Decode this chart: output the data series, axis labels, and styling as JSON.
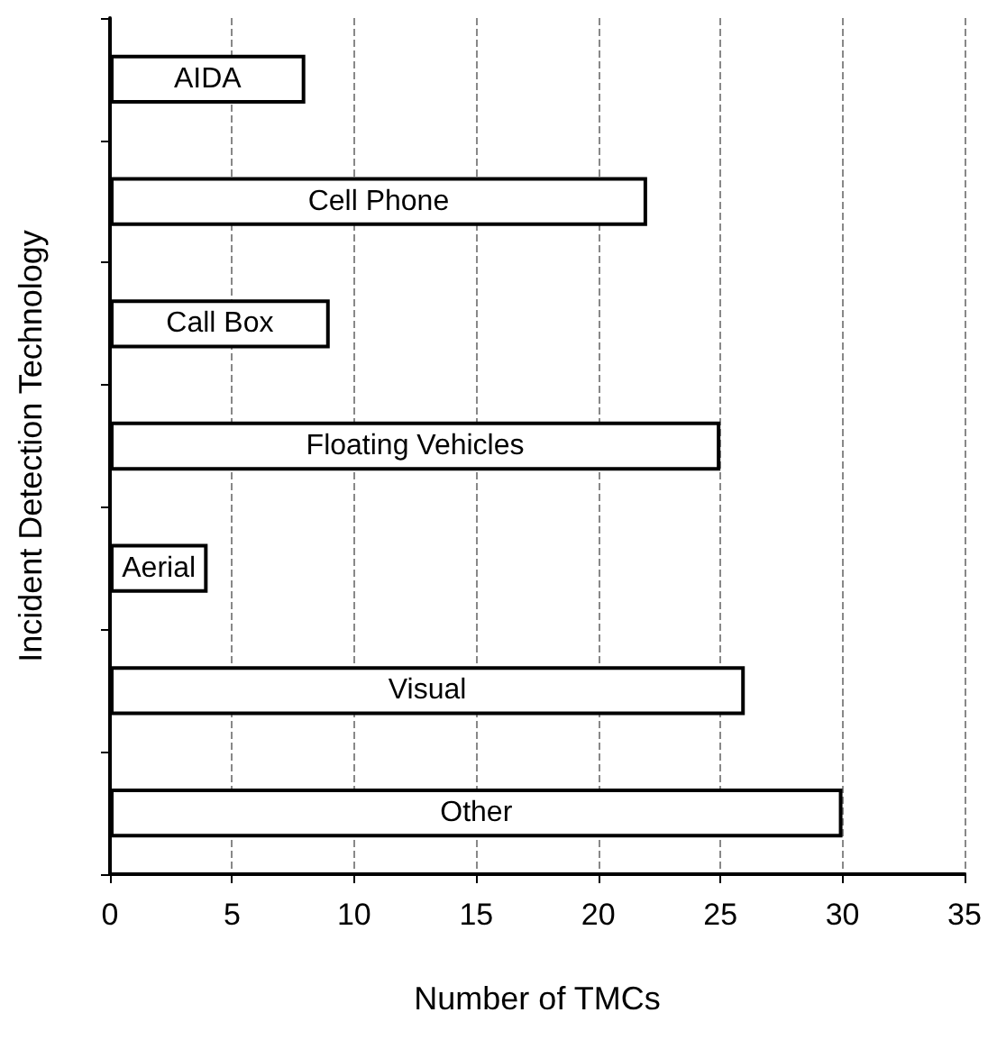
{
  "chart_data": {
    "type": "bar",
    "orientation": "horizontal",
    "xlabel": "Number of TMCs",
    "ylabel": "Incident Detection Technology",
    "categories": [
      "AIDA",
      "Cell Phone",
      "Call Box",
      "Floating Vehicles",
      "Aerial",
      "Visual",
      "Other"
    ],
    "values": [
      8,
      22,
      9,
      25,
      4,
      26,
      30
    ],
    "color": "#ffffff",
    "xlim": [
      0,
      35
    ],
    "xticks": [
      0,
      5,
      10,
      15,
      20,
      25,
      30,
      35
    ],
    "grid": "x",
    "tick_labels": "x"
  }
}
